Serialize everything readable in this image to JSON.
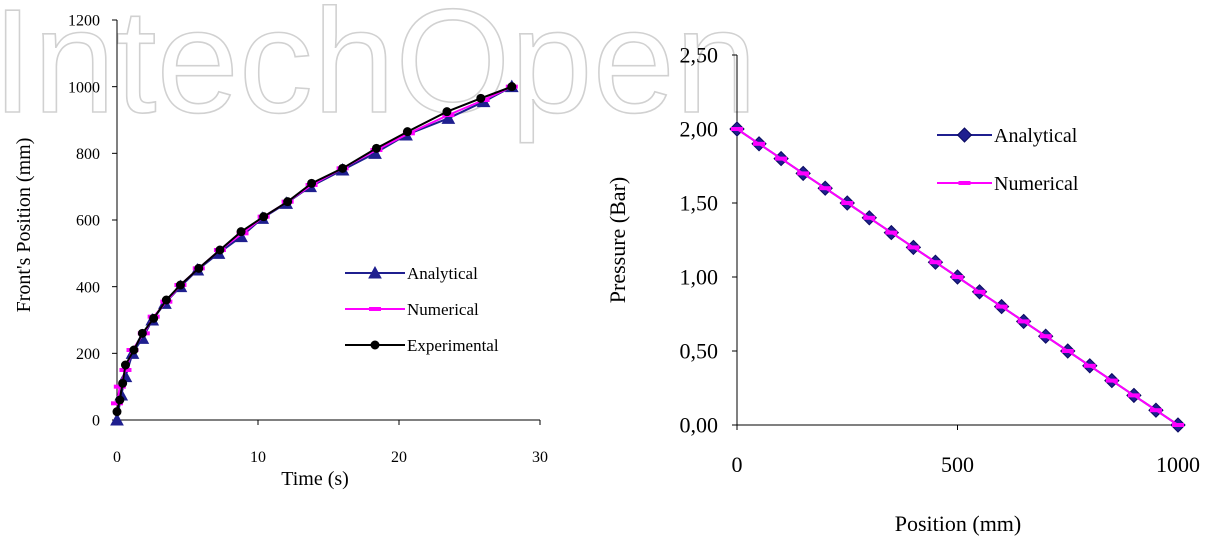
{
  "watermark": "IntechOpen",
  "chart_data": [
    {
      "type": "line",
      "xlabel": "Time (s)",
      "ylabel": "Front's Position (mm)",
      "xlim": [
        0,
        30
      ],
      "ylim": [
        0,
        1200
      ],
      "x_ticks": [
        "0",
        "10",
        "20",
        "30"
      ],
      "y_ticks": [
        "0",
        "200",
        "400",
        "600",
        "800",
        "1000",
        "1200"
      ],
      "legend_position": "center-right",
      "series": [
        {
          "name": "Analytical",
          "color": "#1f1f8f",
          "marker": "triangle",
          "points": [
            [
              0,
              0
            ],
            [
              0.3,
              75
            ],
            [
              0.6,
              130
            ],
            [
              1.1,
              200
            ],
            [
              1.8,
              245
            ],
            [
              2.5,
              300
            ],
            [
              3.4,
              350
            ],
            [
              4.5,
              400
            ],
            [
              5.7,
              450
            ],
            [
              7.2,
              500
            ],
            [
              8.8,
              550
            ],
            [
              10.3,
              605
            ],
            [
              12.0,
              650
            ],
            [
              13.7,
              700
            ],
            [
              16.0,
              750
            ],
            [
              18.3,
              800
            ],
            [
              20.5,
              855
            ],
            [
              23.5,
              905
            ],
            [
              26.0,
              955
            ],
            [
              28.0,
              1000
            ]
          ]
        },
        {
          "name": "Numerical",
          "color": "#ff00ff",
          "marker": "dash",
          "points": [
            [
              0,
              50
            ],
            [
              0.2,
              100
            ],
            [
              0.6,
              150
            ],
            [
              1.1,
              210
            ],
            [
              1.9,
              260
            ],
            [
              2.6,
              310
            ],
            [
              3.5,
              355
            ],
            [
              4.5,
              405
            ],
            [
              5.8,
              455
            ],
            [
              7.3,
              510
            ],
            [
              8.9,
              560
            ],
            [
              10.4,
              610
            ],
            [
              12.1,
              655
            ],
            [
              13.8,
              705
            ],
            [
              16.0,
              755
            ],
            [
              18.4,
              810
            ],
            [
              20.7,
              860
            ],
            [
              23.5,
              915
            ],
            [
              26.0,
              960
            ],
            [
              28.0,
              1000
            ]
          ]
        },
        {
          "name": "Experimental",
          "color": "#000000",
          "marker": "circle",
          "points": [
            [
              0,
              25
            ],
            [
              0.2,
              60
            ],
            [
              0.4,
              110
            ],
            [
              0.6,
              165
            ],
            [
              1.2,
              210
            ],
            [
              1.8,
              260
            ],
            [
              2.6,
              305
            ],
            [
              3.5,
              360
            ],
            [
              4.5,
              405
            ],
            [
              5.8,
              455
            ],
            [
              7.3,
              510
            ],
            [
              8.8,
              565
            ],
            [
              10.4,
              610
            ],
            [
              12.1,
              655
            ],
            [
              13.8,
              710
            ],
            [
              16.0,
              755
            ],
            [
              18.4,
              815
            ],
            [
              20.6,
              865
            ],
            [
              23.4,
              925
            ],
            [
              25.8,
              965
            ],
            [
              28.0,
              1000
            ]
          ]
        }
      ]
    },
    {
      "type": "line",
      "xlabel": "Position (mm)",
      "ylabel": "Pressure (Bar)",
      "xlim": [
        0,
        1000
      ],
      "ylim": [
        0,
        2.5
      ],
      "x_ticks": [
        "0",
        "500",
        "1000"
      ],
      "y_ticks": [
        "0,00",
        "0,50",
        "1,00",
        "1,50",
        "2,00",
        "2,50"
      ],
      "legend_position": "top-right",
      "series": [
        {
          "name": "Analytical",
          "color": "#1f1f8f",
          "marker": "diamond",
          "points": [
            [
              0,
              2.0
            ],
            [
              50,
              1.9
            ],
            [
              100,
              1.8
            ],
            [
              150,
              1.7
            ],
            [
              200,
              1.6
            ],
            [
              250,
              1.5
            ],
            [
              300,
              1.4
            ],
            [
              350,
              1.3
            ],
            [
              400,
              1.2
            ],
            [
              450,
              1.1
            ],
            [
              500,
              1.0
            ],
            [
              550,
              0.9
            ],
            [
              600,
              0.8
            ],
            [
              650,
              0.7
            ],
            [
              700,
              0.6
            ],
            [
              750,
              0.5
            ],
            [
              800,
              0.4
            ],
            [
              850,
              0.3
            ],
            [
              900,
              0.2
            ],
            [
              950,
              0.1
            ],
            [
              1000,
              0.0
            ]
          ]
        },
        {
          "name": "Numerical",
          "color": "#ff00ff",
          "marker": "dash",
          "points": [
            [
              0,
              2.0
            ],
            [
              50,
              1.9
            ],
            [
              100,
              1.8
            ],
            [
              150,
              1.7
            ],
            [
              200,
              1.6
            ],
            [
              250,
              1.5
            ],
            [
              300,
              1.4
            ],
            [
              350,
              1.3
            ],
            [
              400,
              1.2
            ],
            [
              450,
              1.1
            ],
            [
              500,
              1.0
            ],
            [
              550,
              0.9
            ],
            [
              600,
              0.8
            ],
            [
              650,
              0.7
            ],
            [
              700,
              0.6
            ],
            [
              750,
              0.5
            ],
            [
              800,
              0.4
            ],
            [
              850,
              0.3
            ],
            [
              900,
              0.2
            ],
            [
              950,
              0.1
            ],
            [
              1000,
              0.0
            ]
          ]
        }
      ]
    }
  ]
}
